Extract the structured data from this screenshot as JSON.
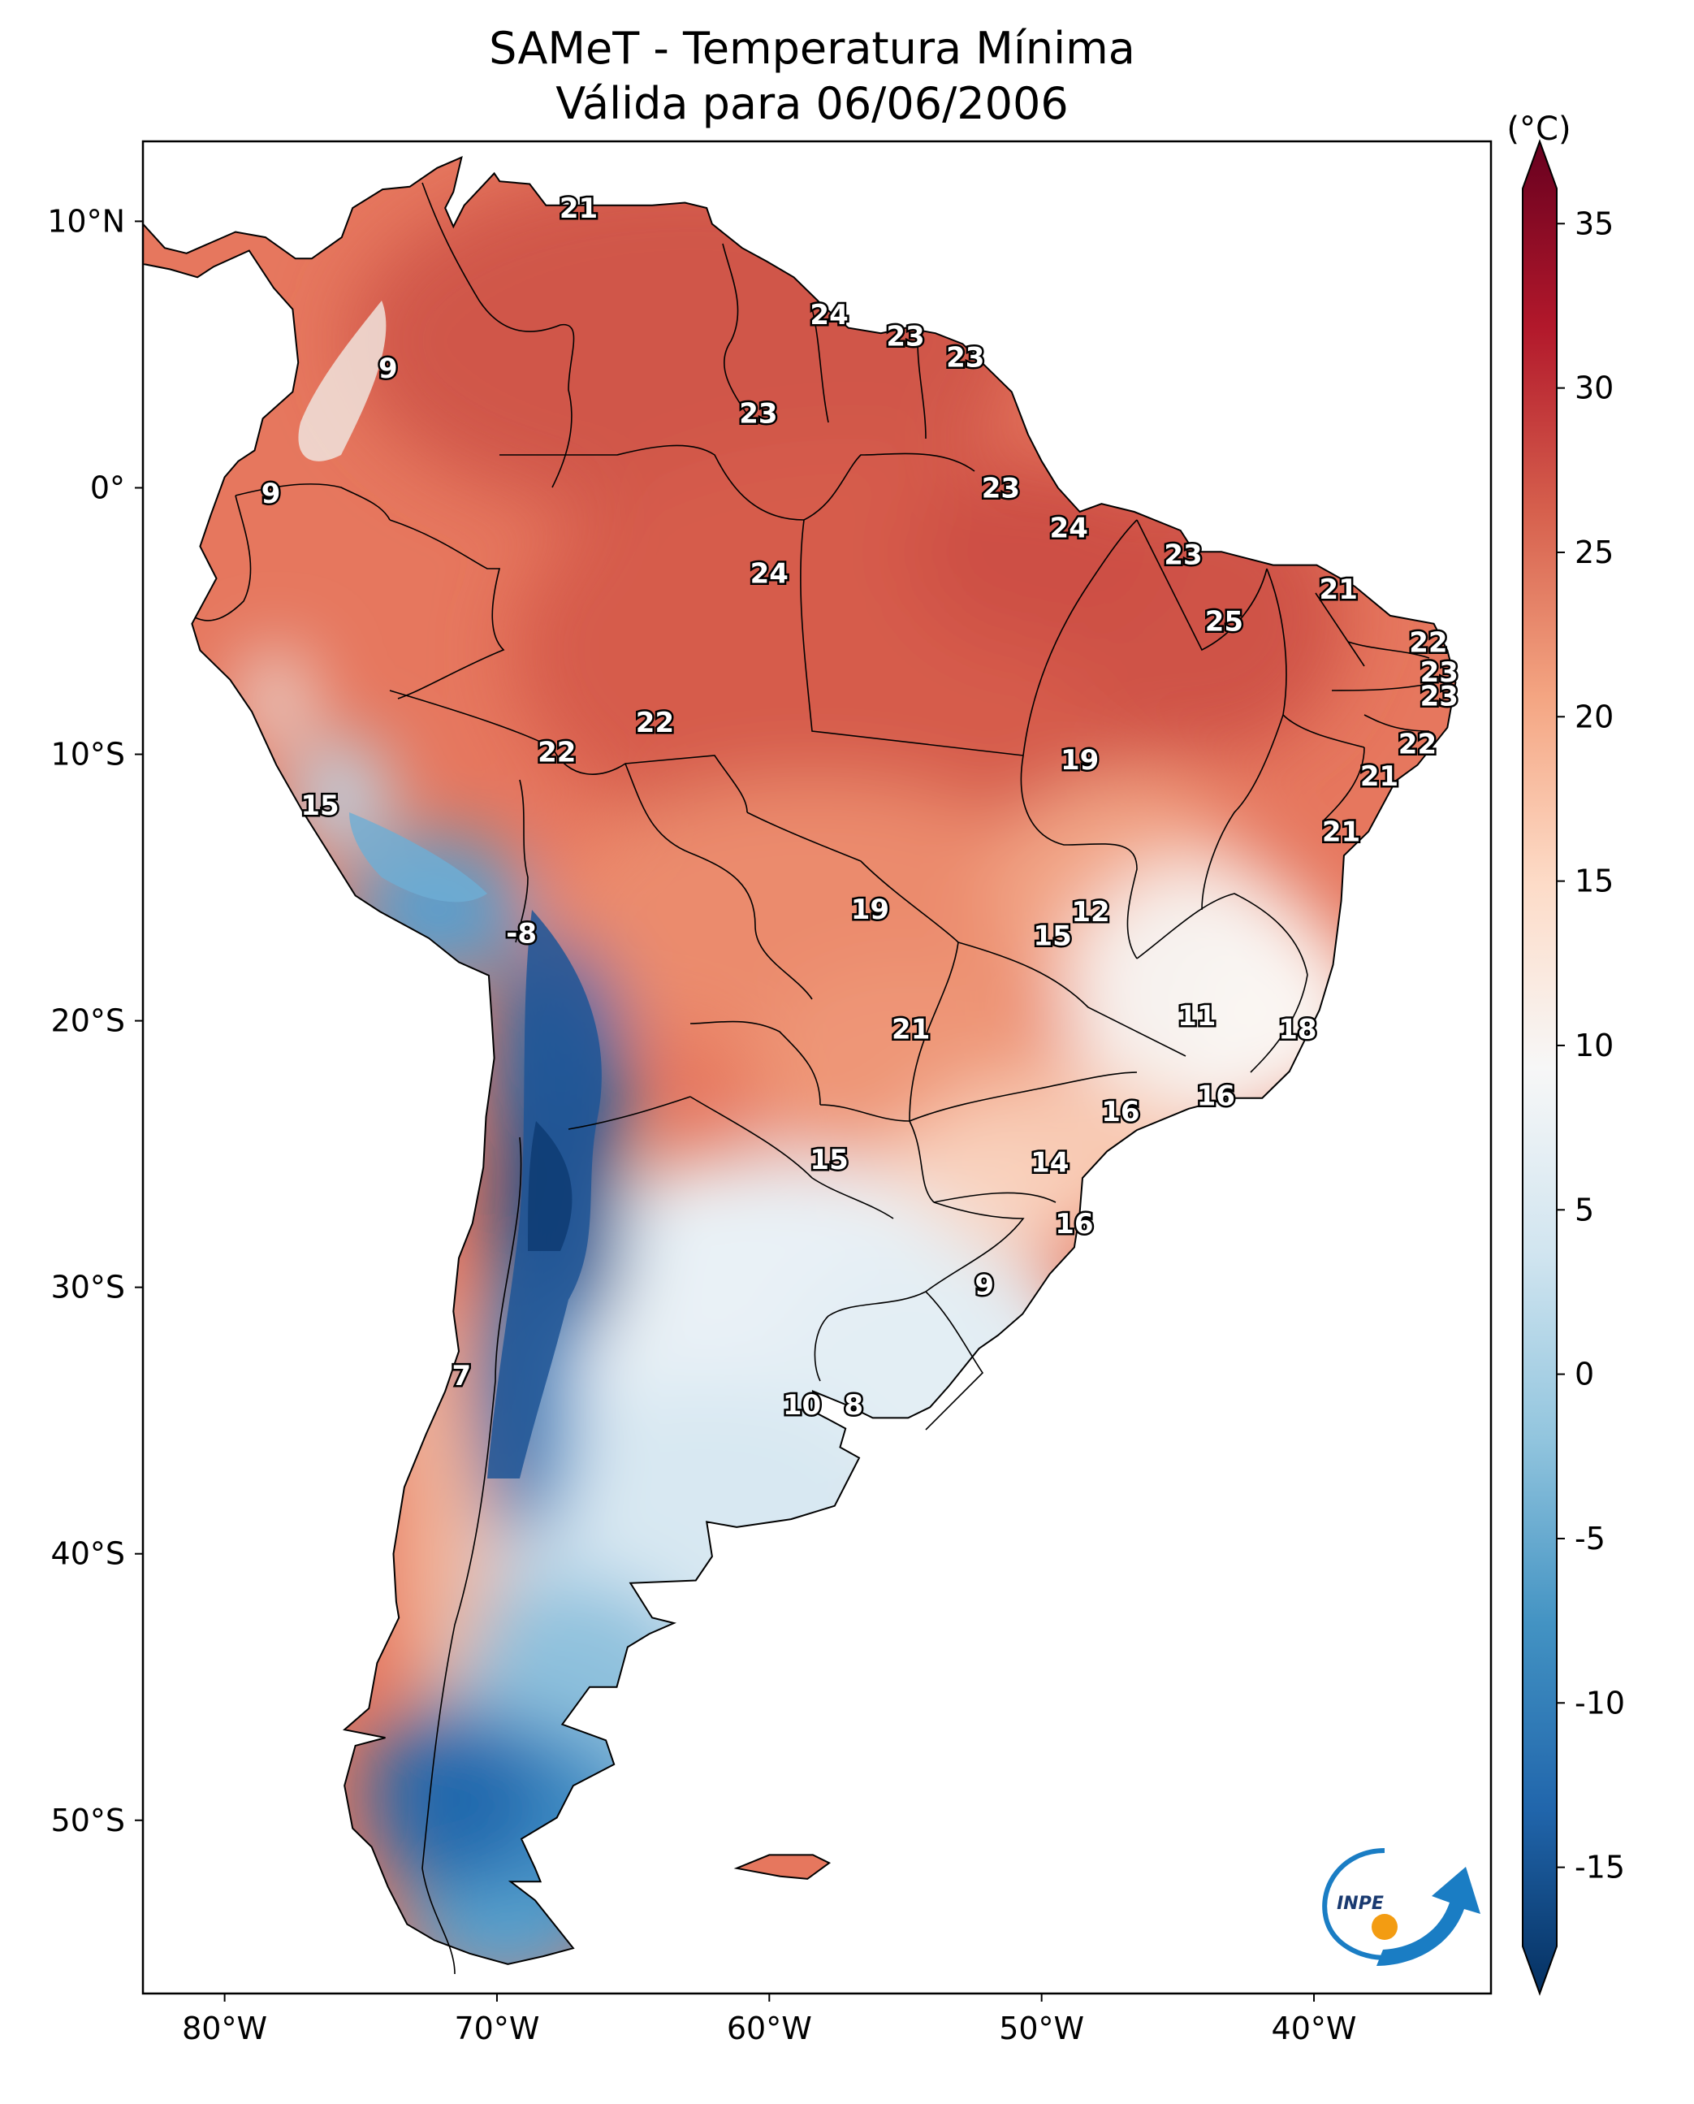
{
  "title": {
    "line1": "SAMeT - Temperatura Mínima",
    "line2": "Válida para 06/06/2006"
  },
  "axes": {
    "lat_ticks": [
      "10°N",
      "0°",
      "10°S",
      "20°S",
      "30°S",
      "40°S",
      "50°S"
    ],
    "lon_ticks": [
      "80°W",
      "70°W",
      "60°W",
      "50°W",
      "40°W"
    ]
  },
  "colorbar": {
    "unit": "(°C)",
    "ticks": [
      "35",
      "30",
      "25",
      "20",
      "15",
      "10",
      "5",
      "0",
      "-5",
      "-10",
      "-15"
    ],
    "range": [
      -15,
      35
    ],
    "colors": [
      "#053061",
      "#2166ac",
      "#4393c3",
      "#92c5de",
      "#d1e5f0",
      "#f7f7f7",
      "#fddbc7",
      "#f4a582",
      "#d6604d",
      "#b2182b",
      "#67001f"
    ]
  },
  "logo": {
    "text": "INPE",
    "blue": "#1a7dc4",
    "orange": "#f39c12"
  },
  "map_labels": [
    {
      "text": "21",
      "lon": -67.0,
      "lat": 10.5
    },
    {
      "text": "9",
      "lon": -74.0,
      "lat": 4.5
    },
    {
      "text": "24",
      "lon": -57.8,
      "lat": 6.5
    },
    {
      "text": "23",
      "lon": -55.0,
      "lat": 5.7
    },
    {
      "text": "23",
      "lon": -52.8,
      "lat": 4.9
    },
    {
      "text": "23",
      "lon": -60.4,
      "lat": 2.8
    },
    {
      "text": "9",
      "lon": -78.3,
      "lat": -0.2
    },
    {
      "text": "23",
      "lon": -51.5,
      "lat": 0.0
    },
    {
      "text": "24",
      "lon": -49.0,
      "lat": -1.5
    },
    {
      "text": "23",
      "lon": -44.8,
      "lat": -2.5
    },
    {
      "text": "24",
      "lon": -60.0,
      "lat": -3.2
    },
    {
      "text": "21",
      "lon": -39.1,
      "lat": -3.8
    },
    {
      "text": "25",
      "lon": -43.3,
      "lat": -5.0
    },
    {
      "text": "22",
      "lon": -35.8,
      "lat": -5.8
    },
    {
      "text": "23",
      "lon": -35.4,
      "lat": -6.9
    },
    {
      "text": "23",
      "lon": -35.4,
      "lat": -7.8
    },
    {
      "text": "22",
      "lon": -64.2,
      "lat": -8.8
    },
    {
      "text": "22",
      "lon": -36.2,
      "lat": -9.6
    },
    {
      "text": "22",
      "lon": -67.8,
      "lat": -9.9
    },
    {
      "text": "19",
      "lon": -48.6,
      "lat": -10.2
    },
    {
      "text": "21",
      "lon": -37.6,
      "lat": -10.8
    },
    {
      "text": "15",
      "lon": -76.5,
      "lat": -11.9
    },
    {
      "text": "21",
      "lon": -39.0,
      "lat": -12.9
    },
    {
      "text": "19",
      "lon": -56.3,
      "lat": -15.8
    },
    {
      "text": "12",
      "lon": -48.2,
      "lat": -15.9
    },
    {
      "text": "15",
      "lon": -49.6,
      "lat": -16.8
    },
    {
      "text": "-8",
      "lon": -69.1,
      "lat": -16.7
    },
    {
      "text": "11",
      "lon": -44.3,
      "lat": -19.8
    },
    {
      "text": "18",
      "lon": -40.6,
      "lat": -20.3
    },
    {
      "text": "21",
      "lon": -54.8,
      "lat": -20.3
    },
    {
      "text": "16",
      "lon": -47.1,
      "lat": -23.4
    },
    {
      "text": "16",
      "lon": -43.6,
      "lat": -22.8
    },
    {
      "text": "15",
      "lon": -57.8,
      "lat": -25.2
    },
    {
      "text": "14",
      "lon": -49.7,
      "lat": -25.3
    },
    {
      "text": "16",
      "lon": -48.8,
      "lat": -27.6
    },
    {
      "text": "9",
      "lon": -52.1,
      "lat": -29.9
    },
    {
      "text": "7",
      "lon": -71.3,
      "lat": -33.3
    },
    {
      "text": "10",
      "lon": -58.8,
      "lat": -34.4
    },
    {
      "text": "8",
      "lon": -56.9,
      "lat": -34.4
    }
  ]
}
